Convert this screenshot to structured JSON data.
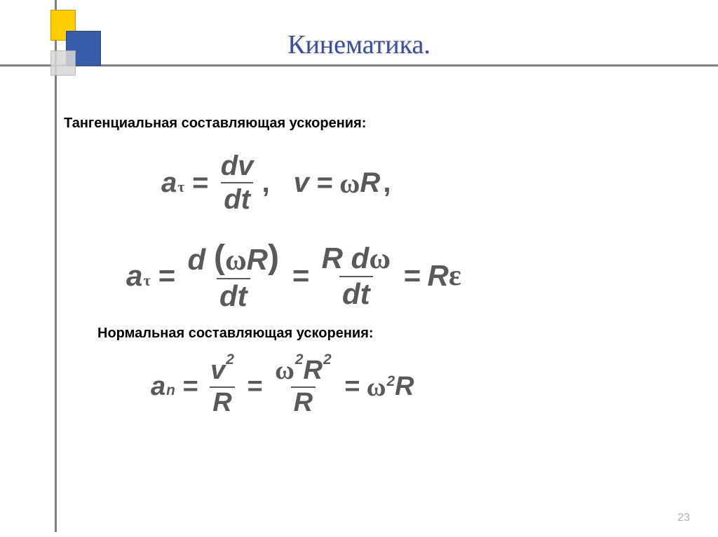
{
  "slide": {
    "title": "Кинематика.",
    "page_number": "23",
    "background_color": "#ffffff",
    "title_color": "#3a4fa0",
    "text_color": "#595959",
    "accent_colors": {
      "yellow": "#ffcd00",
      "blue": "#385da8",
      "grey_square": "#d8d8d8",
      "rule_grey": "#808080"
    }
  },
  "headings": {
    "tangential": "Тангенциальная составляющая ускорения:",
    "normal": "Нормальная составляющая ускорения:"
  },
  "equations": {
    "eq1": {
      "lhs_var": "a",
      "lhs_sub": "τ",
      "frac_num": "dv",
      "frac_den": "dt",
      "sep": ",",
      "second_lhs": "v",
      "second_rhs_omega": "ω",
      "second_rhs_R": "R",
      "trail": ","
    },
    "eq2": {
      "lhs_var": "a",
      "lhs_sub": "τ",
      "frac1_num_d": "d",
      "frac1_num_omega": "ω",
      "frac1_num_R": "R",
      "frac1_den": "dt",
      "frac2_num_R": "R",
      "frac2_num_d": "d",
      "frac2_num_omega": "ω",
      "frac2_den": "dt",
      "rhs_R": "R",
      "rhs_eps": "ε"
    },
    "eq3": {
      "lhs_var": "a",
      "lhs_sub": "n",
      "frac1_num_v": "v",
      "frac1_num_exp": "2",
      "frac1_den": "R",
      "frac2_num_omega": "ω",
      "frac2_num_omega_exp": "2",
      "frac2_num_R": "R",
      "frac2_num_R_exp": "2",
      "frac2_den": "R",
      "rhs_omega": "ω",
      "rhs_omega_exp": "2",
      "rhs_R": "R"
    }
  }
}
